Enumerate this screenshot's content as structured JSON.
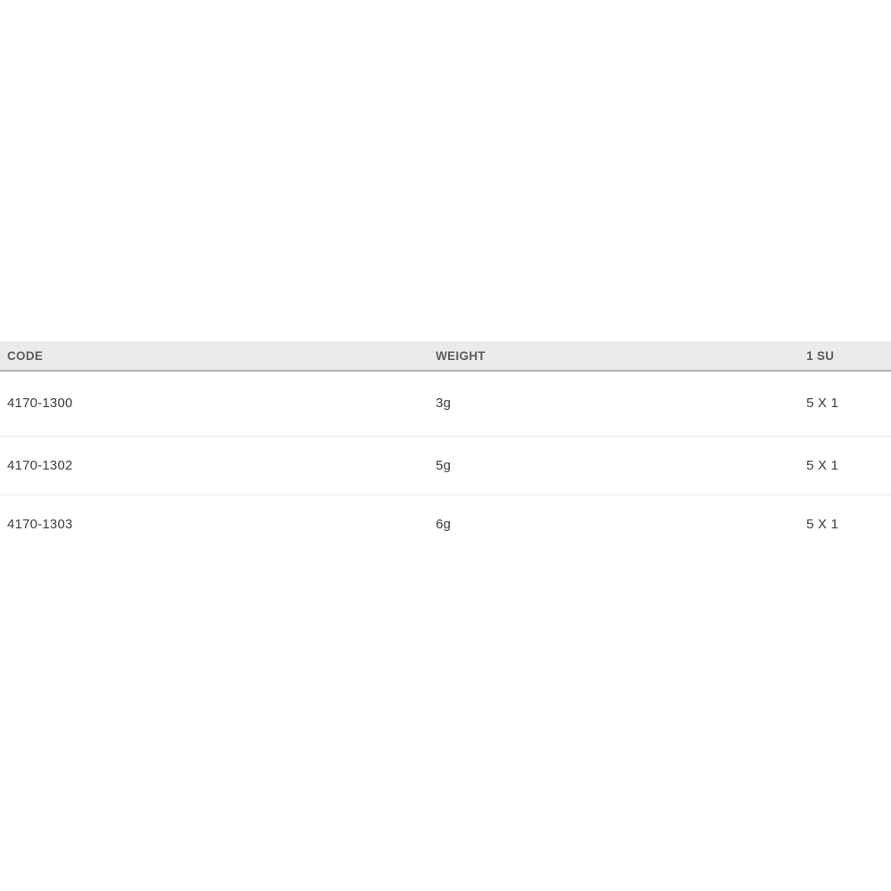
{
  "table": {
    "columns": {
      "code": "CODE",
      "weight": "WEIGHT",
      "su": "1 SU"
    },
    "rows": [
      {
        "code": "4170-1300",
        "weight": "3g",
        "su": "5 X 1"
      },
      {
        "code": "4170-1302",
        "weight": "5g",
        "su": "5 X 1"
      },
      {
        "code": "4170-1303",
        "weight": "6g",
        "su": "5 X 1"
      }
    ]
  },
  "colors": {
    "header_bg": "#ebebeb",
    "header_border": "#b2b2b2",
    "row_separator": "#e5e5e5",
    "header_text": "#5d5d5d",
    "cell_text": "#3b3b3b",
    "page_bg": "#ffffff"
  }
}
